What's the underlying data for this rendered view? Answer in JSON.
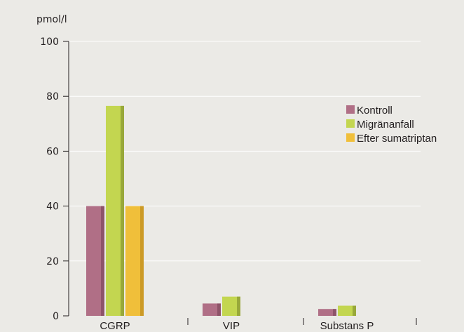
{
  "chart_data": {
    "type": "bar",
    "title": "",
    "xlabel": "",
    "ylabel": "pmol/l",
    "ylim": [
      0,
      100
    ],
    "yticks": [
      0,
      20,
      40,
      60,
      80,
      100
    ],
    "categories": [
      "CGRP",
      "VIP",
      "Substans P"
    ],
    "series": [
      {
        "name": "Kontroll",
        "values": [
          40,
          4.5,
          2.5
        ],
        "color": "#b06f86",
        "shade": "#8e5469"
      },
      {
        "name": "Migränanfall",
        "values": [
          76.5,
          7,
          3.7
        ],
        "color": "#c3d650",
        "shade": "#98a83a"
      },
      {
        "name": "Efter sumatriptan",
        "values": [
          40,
          null,
          null
        ],
        "color": "#f0bf3a",
        "shade": "#cc9a26"
      }
    ],
    "grid": true,
    "legend_position": "top-right"
  }
}
